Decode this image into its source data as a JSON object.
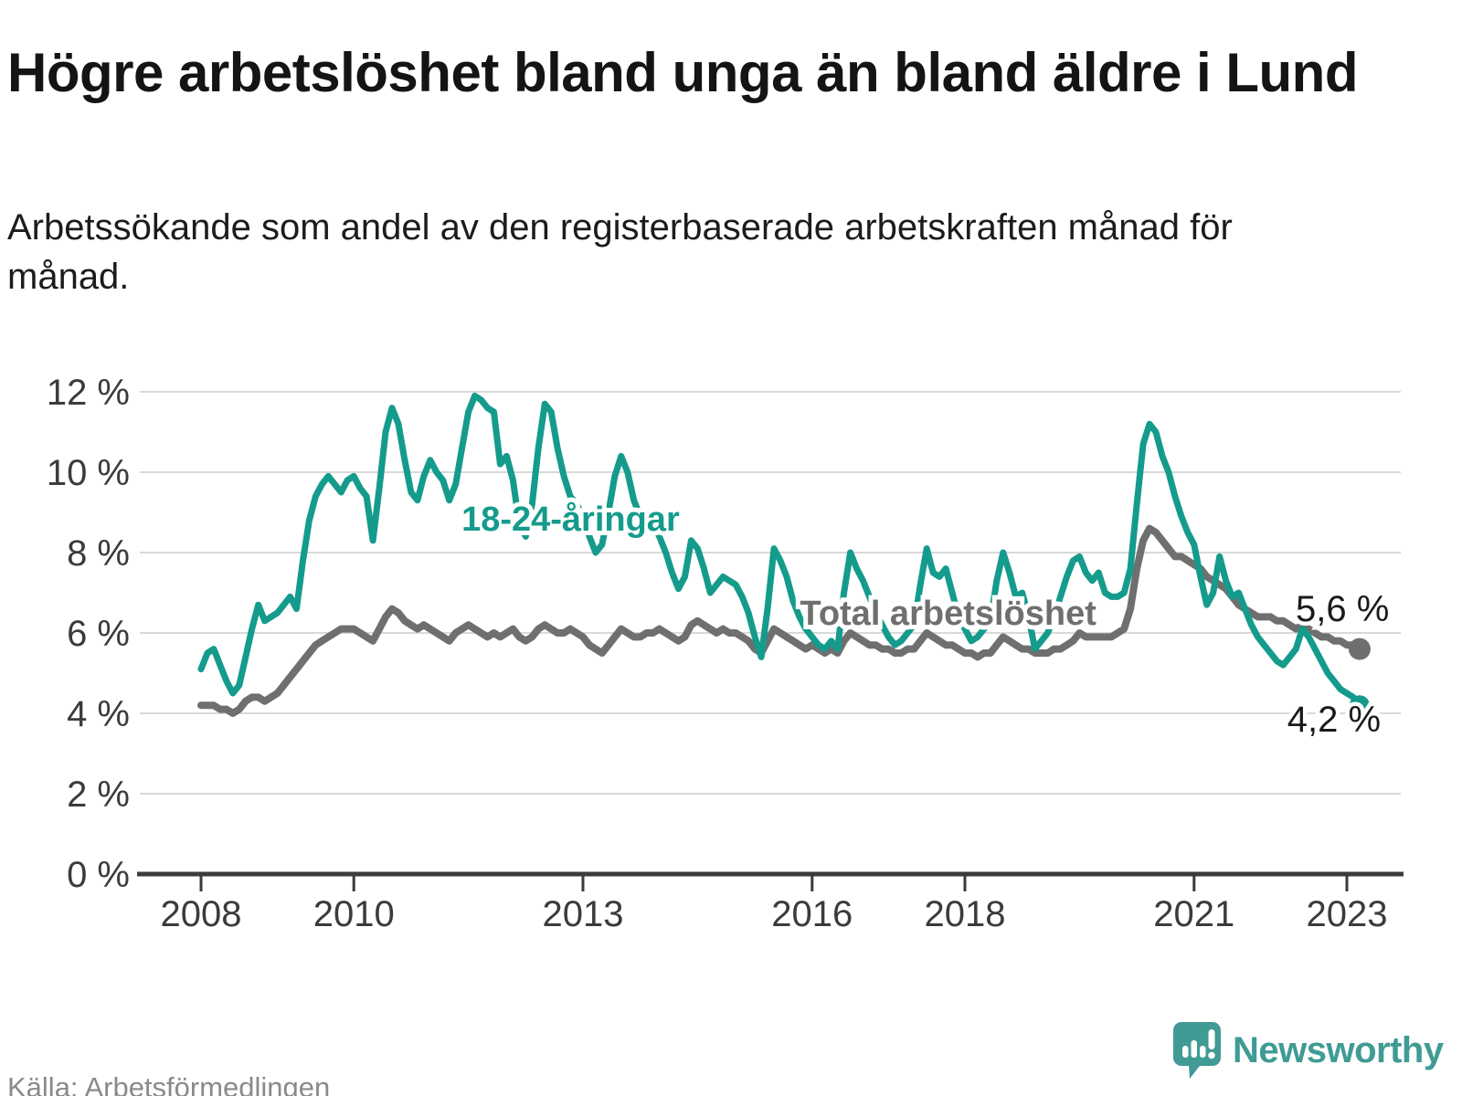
{
  "header": {
    "title": "Högre arbetslöshet bland unga än bland äldre i Lund",
    "subtitle": "Arbetssökande som andel av den registerbaserade arbetskraften månad för månad."
  },
  "source": {
    "label": "Källa: Arbetsförmedlingen"
  },
  "brand": {
    "name": "Newsworthy",
    "color": "#3f9b94"
  },
  "chart_data": {
    "type": "line",
    "title": "Högre arbetslöshet bland unga än bland äldre i Lund",
    "frequency": "monthly",
    "x_start": "2008-01",
    "x_end": "2023-03",
    "x_tick_years": [
      2008,
      2010,
      2013,
      2016,
      2018,
      2021,
      2023
    ],
    "y_ticks": [
      0,
      2,
      4,
      6,
      8,
      10,
      12
    ],
    "y_tick_suffix": " %",
    "ylim": [
      0,
      12
    ],
    "grid": "horizontal",
    "colors": {
      "youth": "#149b8c",
      "total": "#6f6f6f",
      "axis": "#3b3b3b",
      "gridline": "#d9d9d9"
    },
    "series": [
      {
        "id": "total",
        "name": "Total arbetslöshet",
        "color": "#6f6f6f",
        "end_value_label": "5,6 %",
        "values": [
          4.2,
          4.2,
          4.2,
          4.1,
          4.1,
          4.0,
          4.1,
          4.3,
          4.4,
          4.4,
          4.3,
          4.4,
          4.5,
          4.7,
          4.9,
          5.1,
          5.3,
          5.5,
          5.7,
          5.8,
          5.9,
          6.0,
          6.1,
          6.1,
          6.1,
          6.0,
          5.9,
          5.8,
          6.1,
          6.4,
          6.6,
          6.5,
          6.3,
          6.2,
          6.1,
          6.2,
          6.1,
          6.0,
          5.9,
          5.8,
          6.0,
          6.1,
          6.2,
          6.1,
          6.0,
          5.9,
          6.0,
          5.9,
          6.0,
          6.1,
          5.9,
          5.8,
          5.9,
          6.1,
          6.2,
          6.1,
          6.0,
          6.0,
          6.1,
          6.0,
          5.9,
          5.7,
          5.6,
          5.5,
          5.7,
          5.9,
          6.1,
          6.0,
          5.9,
          5.9,
          6.0,
          6.0,
          6.1,
          6.0,
          5.9,
          5.8,
          5.9,
          6.2,
          6.3,
          6.2,
          6.1,
          6.0,
          6.1,
          6.0,
          6.0,
          5.9,
          5.8,
          5.6,
          5.5,
          5.8,
          6.1,
          6.0,
          5.9,
          5.8,
          5.7,
          5.6,
          5.7,
          5.6,
          5.5,
          5.6,
          5.5,
          5.8,
          6.0,
          5.9,
          5.8,
          5.7,
          5.7,
          5.6,
          5.6,
          5.5,
          5.5,
          5.6,
          5.6,
          5.8,
          6.0,
          5.9,
          5.8,
          5.7,
          5.7,
          5.6,
          5.5,
          5.5,
          5.4,
          5.5,
          5.5,
          5.7,
          5.9,
          5.8,
          5.7,
          5.6,
          5.6,
          5.5,
          5.5,
          5.5,
          5.6,
          5.6,
          5.7,
          5.8,
          6.0,
          5.9,
          5.9,
          5.9,
          5.9,
          5.9,
          6.0,
          6.1,
          6.6,
          7.6,
          8.3,
          8.6,
          8.5,
          8.3,
          8.1,
          7.9,
          7.9,
          7.8,
          7.7,
          7.6,
          7.4,
          7.3,
          7.2,
          7.1,
          6.9,
          6.7,
          6.6,
          6.5,
          6.4,
          6.4,
          6.4,
          6.3,
          6.3,
          6.2,
          6.1,
          6.2,
          6.1,
          6.0,
          5.9,
          5.9,
          5.8,
          5.8,
          5.7,
          5.7,
          5.6
        ]
      },
      {
        "id": "youth",
        "name": "18-24-åringar",
        "color": "#149b8c",
        "end_value_label": "4,2 %",
        "values": [
          5.1,
          5.5,
          5.6,
          5.2,
          4.8,
          4.5,
          4.7,
          5.4,
          6.1,
          6.7,
          6.3,
          6.4,
          6.5,
          6.7,
          6.9,
          6.6,
          7.8,
          8.8,
          9.4,
          9.7,
          9.9,
          9.7,
          9.5,
          9.8,
          9.9,
          9.6,
          9.4,
          8.3,
          9.6,
          11.0,
          11.6,
          11.2,
          10.3,
          9.5,
          9.3,
          9.9,
          10.3,
          10.0,
          9.8,
          9.3,
          9.7,
          10.6,
          11.5,
          11.9,
          11.8,
          11.6,
          11.5,
          10.2,
          10.4,
          9.8,
          8.7,
          8.4,
          9.2,
          10.6,
          11.7,
          11.5,
          10.6,
          9.9,
          9.4,
          9.2,
          8.9,
          8.4,
          8.0,
          8.2,
          9.0,
          9.9,
          10.4,
          10.0,
          9.3,
          8.9,
          8.6,
          8.7,
          8.4,
          8.0,
          7.5,
          7.1,
          7.4,
          8.3,
          8.1,
          7.6,
          7.0,
          7.2,
          7.4,
          7.3,
          7.2,
          6.9,
          6.5,
          5.9,
          5.4,
          6.6,
          8.1,
          7.8,
          7.4,
          6.8,
          6.4,
          6.1,
          5.9,
          5.7,
          5.6,
          5.8,
          5.6,
          7.0,
          8.0,
          7.6,
          7.3,
          6.9,
          6.5,
          6.2,
          5.9,
          5.7,
          5.8,
          6.0,
          6.2,
          7.2,
          8.1,
          7.5,
          7.4,
          7.6,
          7.0,
          6.4,
          6.1,
          5.8,
          5.9,
          6.1,
          6.3,
          7.3,
          8.0,
          7.5,
          6.9,
          7.0,
          6.4,
          5.6,
          5.8,
          6.0,
          6.4,
          6.9,
          7.4,
          7.8,
          7.9,
          7.5,
          7.3,
          7.5,
          7.0,
          6.9,
          6.9,
          7.0,
          7.6,
          9.2,
          10.7,
          11.2,
          11.0,
          10.4,
          10.0,
          9.4,
          8.9,
          8.5,
          8.2,
          7.4,
          6.7,
          7.0,
          7.9,
          7.3,
          6.9,
          7.0,
          6.6,
          6.2,
          5.9,
          5.7,
          5.5,
          5.3,
          5.2,
          5.4,
          5.6,
          6.1,
          5.9,
          5.6,
          5.3,
          5.0,
          4.8,
          4.6,
          4.5,
          4.4,
          4.2
        ]
      }
    ],
    "annotations": [
      {
        "id": "youth-label",
        "text": "18-24-åringar",
        "year": 2011.41,
        "value": 8.55,
        "kind": "series-label",
        "color": "#149b8c"
      },
      {
        "id": "total-label",
        "text": "Total arbetslöshet",
        "year": 2015.84,
        "value": 6.2,
        "kind": "series-label",
        "color": "#6f6f6f"
      },
      {
        "id": "total-end-value",
        "text": "5,6 %",
        "year": 2022.33,
        "value": 6.3,
        "kind": "value-label"
      },
      {
        "id": "youth-end-value",
        "text": "4,2 %",
        "year": 2022.22,
        "value": 3.55,
        "kind": "value-label"
      }
    ]
  }
}
